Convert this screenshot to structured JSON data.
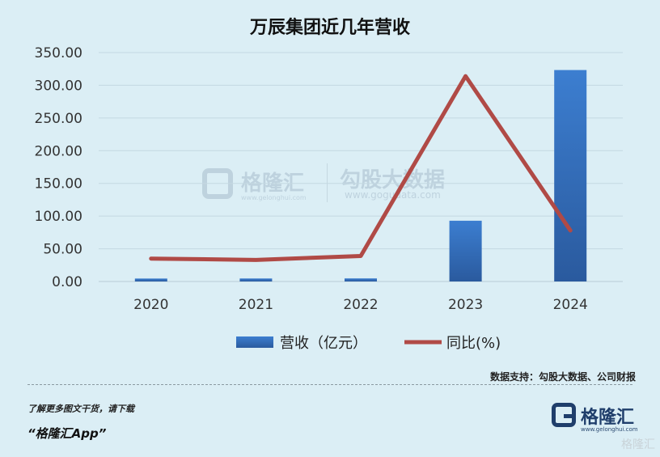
{
  "title": "万辰集团近几年营收",
  "chart_data": {
    "type": "bar",
    "title": "万辰集团近几年营收",
    "categories": [
      "2020",
      "2021",
      "2022",
      "2023",
      "2024"
    ],
    "series": [
      {
        "name": "营收（亿元）",
        "type": "bar",
        "color": "#3a78c8",
        "values": [
          4.5,
          4.6,
          4.7,
          92.9,
          323.3
        ]
      },
      {
        "name": "同比(%)",
        "type": "line",
        "color": "#b04a46",
        "values": [
          35,
          33,
          39,
          314,
          78
        ]
      }
    ],
    "yticks": [
      "0.00",
      "50.00",
      "100.00",
      "150.00",
      "200.00",
      "250.00",
      "300.00",
      "350.00"
    ],
    "ylim": [
      0,
      350
    ],
    "grid": true,
    "legend": "bottom"
  },
  "watermark": {
    "name": "格隆汇",
    "url": "www.gelonghui.com",
    "name2": "勾股大数据",
    "url2": "www.gogudata.com"
  },
  "source": "数据支持：勾股大数据、公司财报",
  "promo_line1": "了解更多图文干货，请下载",
  "promo_line2": "“格隆汇App”",
  "brand": {
    "name": "格隆汇",
    "url": "www.gelonghui.com"
  },
  "corner_mark": "格隆汇"
}
